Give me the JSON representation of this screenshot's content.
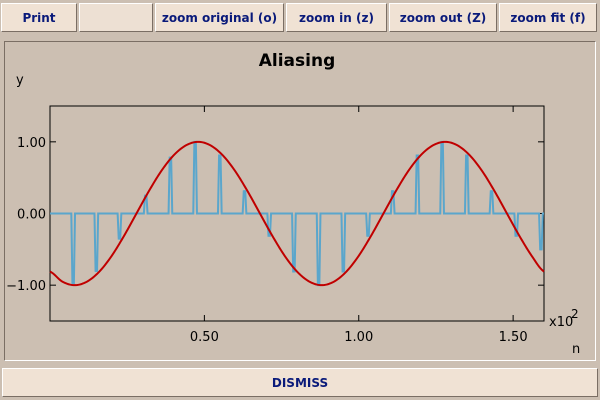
{
  "toolbar": {
    "print_label": "Print",
    "zoom_original_label": "zoom original (o)",
    "zoom_in_label": "zoom in (z)",
    "zoom_out_label": "zoom out (Z)",
    "zoom_fit_label": "zoom fit (f)"
  },
  "footer": {
    "dismiss_label": "DISMISS"
  },
  "colors": {
    "signal": "#c00000",
    "samples": "#5aa6cc",
    "plot_bg": "#ccbfb2"
  },
  "chart_data": {
    "type": "line",
    "title": "Aliasing",
    "xlabel": "n",
    "ylabel": "y",
    "x_multiplier_label": "x10",
    "x_multiplier_exp": "2",
    "xlim": [
      0,
      1.6
    ],
    "ylim": [
      -1.5,
      1.5
    ],
    "x_ticks": [
      {
        "value": 0.5,
        "label": "0.50"
      },
      {
        "value": 1.0,
        "label": "1.00"
      },
      {
        "value": 1.5,
        "label": "1.50"
      }
    ],
    "y_ticks": [
      {
        "value": 1.0,
        "label": "1.00"
      },
      {
        "value": 0.0,
        "label": "0.00"
      },
      {
        "value": -1.0,
        "label": "−1.00"
      }
    ],
    "grid": false,
    "series": [
      {
        "kind": "continuous",
        "period": 0.8,
        "x": [
          0,
          0.04,
          0.08,
          0.12,
          0.16,
          0.2,
          0.24,
          0.28,
          0.32,
          0.36,
          0.4,
          0.44,
          0.48,
          0.52,
          0.56,
          0.6,
          0.64,
          0.68,
          0.72,
          0.76,
          0.8,
          0.84,
          0.88,
          0.92,
          0.96,
          1.0,
          1.04,
          1.08,
          1.12,
          1.16,
          1.2,
          1.24,
          1.28,
          1.32,
          1.36,
          1.4,
          1.44,
          1.48,
          1.52,
          1.56,
          1.6
        ],
        "y": [
          -0.81,
          -0.95,
          -1.0,
          -0.95,
          -0.81,
          -0.59,
          -0.31,
          0.0,
          0.31,
          0.59,
          0.81,
          0.95,
          1.0,
          0.95,
          0.81,
          0.59,
          0.31,
          0.0,
          -0.31,
          -0.59,
          -0.81,
          -0.95,
          -1.0,
          -0.95,
          -0.81,
          -0.59,
          -0.31,
          0.0,
          0.31,
          0.59,
          0.81,
          0.95,
          1.0,
          0.95,
          0.81,
          0.59,
          0.31,
          0.0,
          -0.31,
          -0.59,
          -0.81
        ]
      },
      {
        "kind": "impulse",
        "x": [
          0.075,
          0.15,
          0.225,
          0.31,
          0.39,
          0.47,
          0.55,
          0.63,
          0.71,
          0.79,
          0.87,
          0.95,
          1.03,
          1.11,
          1.19,
          1.27,
          1.35,
          1.43,
          1.51,
          1.59
        ],
        "y": [
          -0.97,
          -0.8,
          -0.35,
          0.25,
          0.78,
          1.0,
          0.81,
          0.31,
          -0.31,
          -0.81,
          -1.0,
          -0.81,
          -0.31,
          0.31,
          0.81,
          1.0,
          0.81,
          0.31,
          -0.31,
          -0.5
        ]
      }
    ]
  }
}
